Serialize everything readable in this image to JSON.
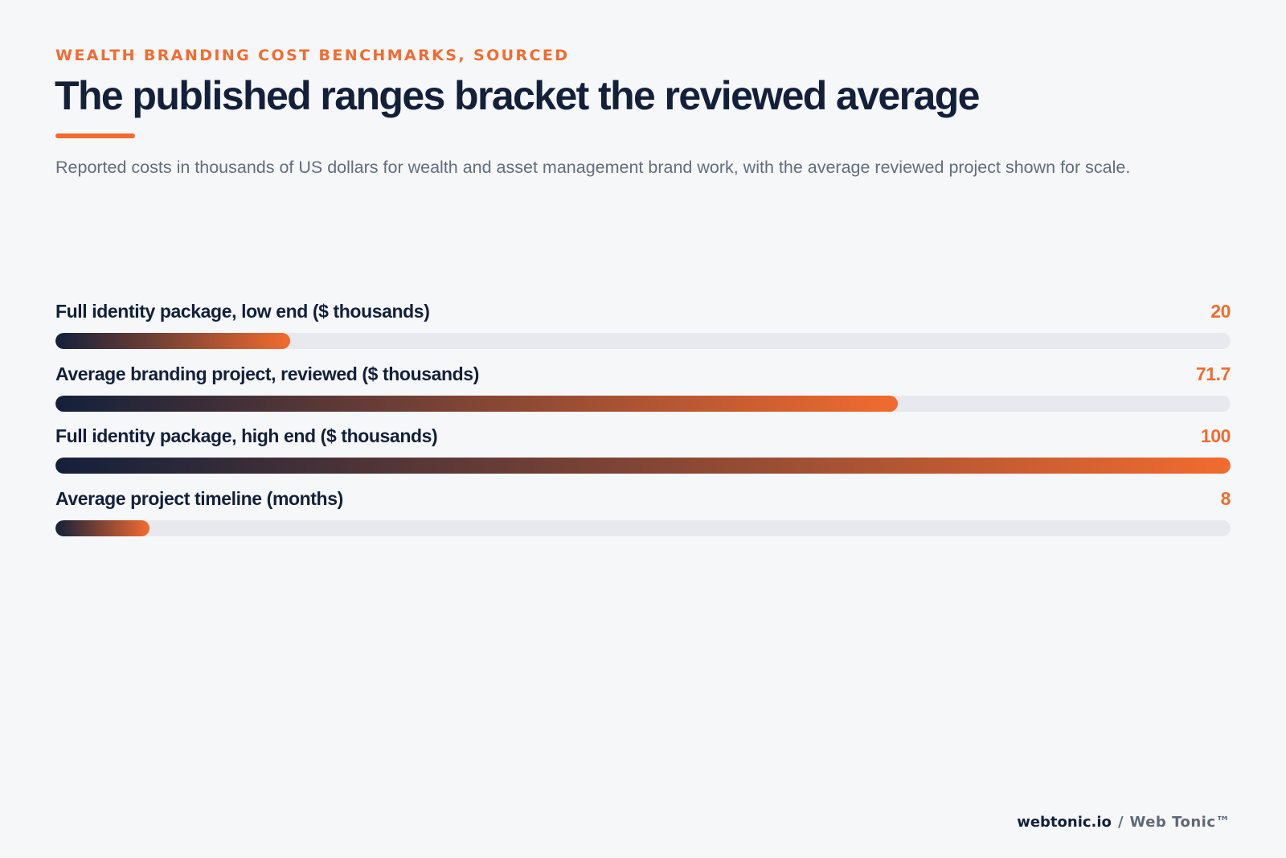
{
  "eyebrow": "WEALTH BRANDING COST BENCHMARKS, SOURCED",
  "title": "The published ranges bracket the reviewed average",
  "subtitle": "Reported costs in thousands of US dollars for wealth and asset management brand work, with the average reviewed project shown for scale.",
  "footer": {
    "site": "webtonic.io",
    "separator": "/",
    "brand": "Web Tonic™"
  },
  "colors": {
    "accent": "#f26b2f",
    "navy": "#13203a",
    "track": "#e7e9ee",
    "background": "#f6f7f9"
  },
  "chart_data": {
    "type": "bar",
    "orientation": "horizontal",
    "title": "The published ranges bracket the reviewed average",
    "xlim": [
      0,
      100
    ],
    "grid": false,
    "categories": [
      "Full identity package, low end ($ thousands)",
      "Average branding project, reviewed ($ thousands)",
      "Full identity package, high end ($ thousands)",
      "Average project timeline (months)"
    ],
    "values": [
      20,
      71.7,
      100,
      8
    ],
    "value_labels": [
      "20",
      "71.7",
      "100",
      "8"
    ]
  }
}
